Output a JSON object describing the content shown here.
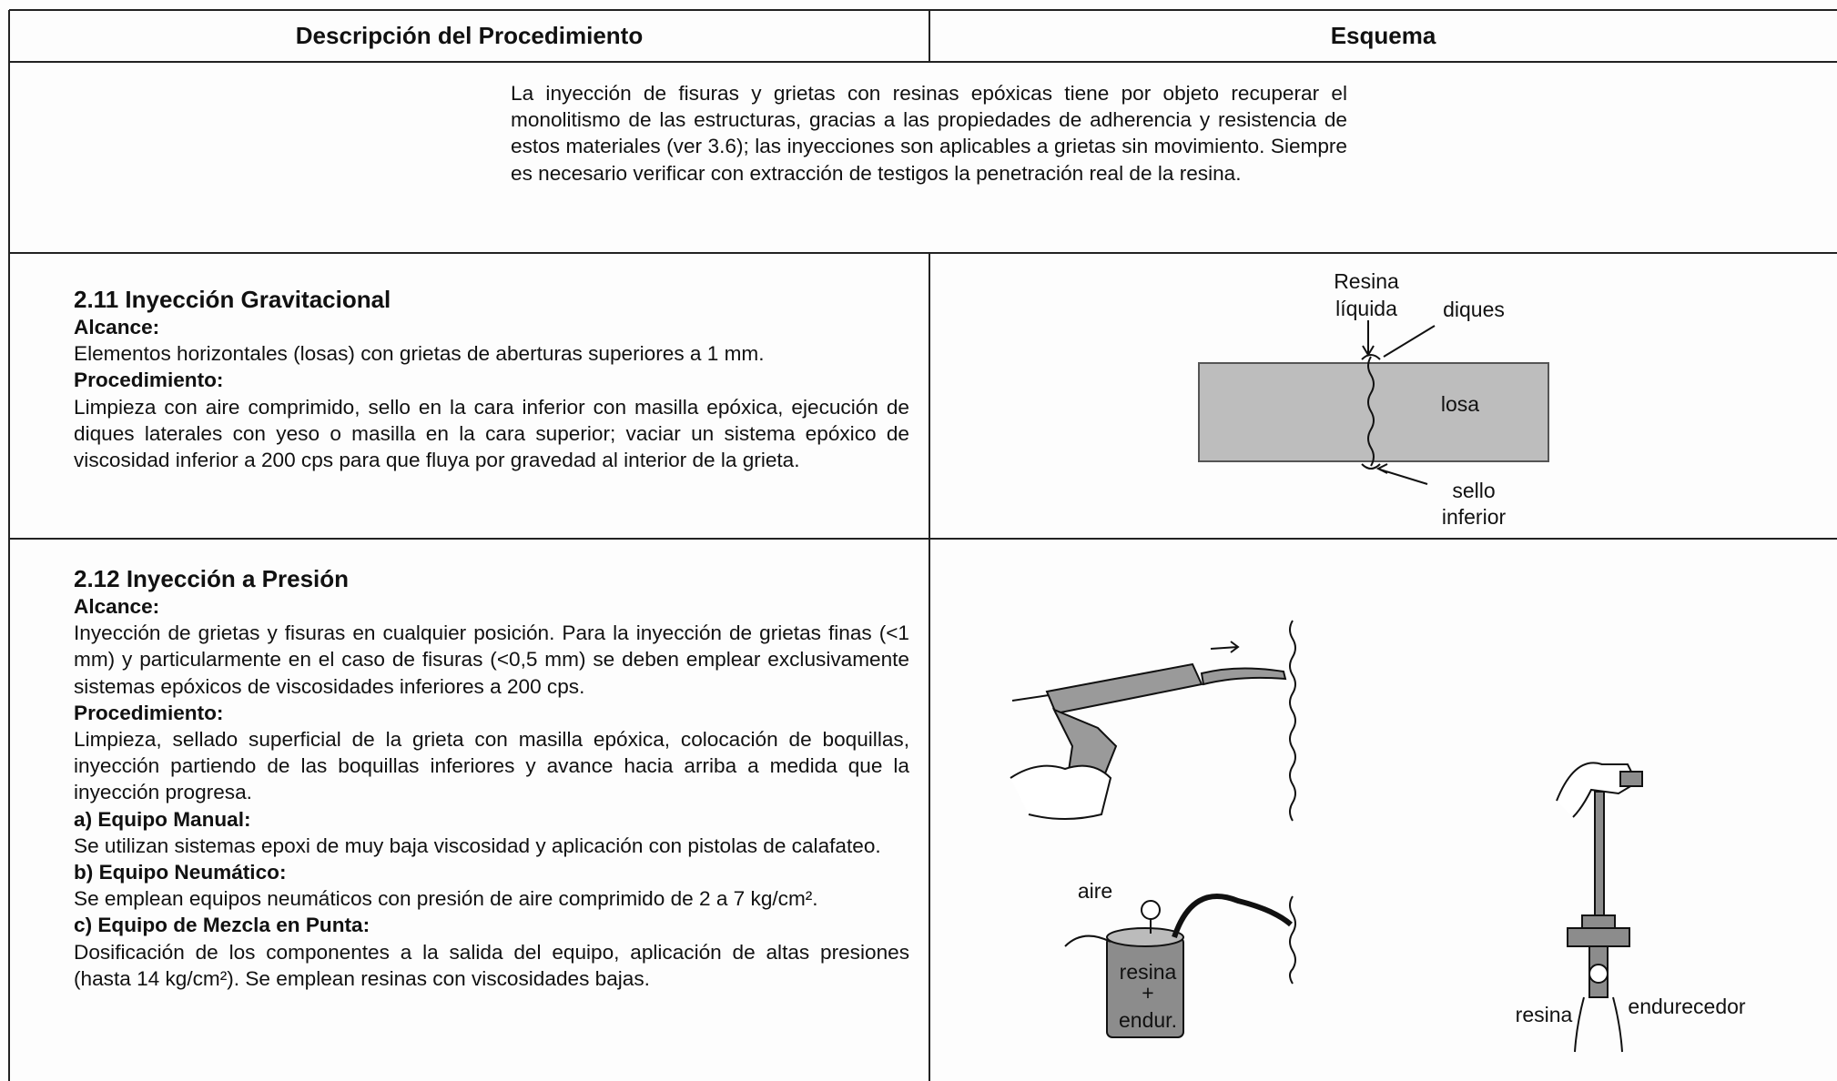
{
  "header": {
    "col1": "Descripción del Procedimiento",
    "col2": "Esquema"
  },
  "intro": "La inyección de fisuras y grietas con resinas epóxicas tiene por objeto recuperar el monolitismo de las estructuras, gracias a las propiedades de adherencia y resistencia de estos materiales (ver 3.6); las inyecciones son aplicables a grietas sin movimiento. Siempre es necesario verificar con extracción de testigos la penetración real de la resina.",
  "sections": [
    {
      "title": "2.11 Inyección Gravitacional",
      "blocks": [
        {
          "heading": "Alcance:",
          "text": "Elementos horizontales (losas) con grietas de aberturas superiores a 1 mm."
        },
        {
          "heading": "Procedimiento:",
          "text": "Limpieza con aire comprimido, sello en la cara inferior con masilla epóxica, ejecución de diques laterales con yeso o masilla en la cara superior; vaciar un sistema epóxico de viscosidad inferior a 200 cps para que fluya por gravedad al interior de la grieta."
        }
      ]
    },
    {
      "title": "2.12 Inyección a Presión",
      "blocks": [
        {
          "heading": "Alcance:",
          "text": "Inyección de grietas y fisuras en cualquier posición. Para la inyección de grietas finas (<1 mm) y particularmente en el caso de fisuras (<0,5 mm) se deben emplear exclusivamente sistemas epóxicos de viscosidades inferiores a 200 cps."
        },
        {
          "heading": "Procedimiento:",
          "text": "Limpieza, sellado superficial de la grieta con masilla epóxica, colocación de boquillas, inyección partiendo de las boquillas inferiores y avance hacia arriba a medida que la inyección progresa."
        },
        {
          "heading": "a) Equipo Manual:",
          "text": "Se utilizan sistemas epoxi de muy baja viscosidad y aplicación con pistolas de calafateo."
        },
        {
          "heading": "b) Equipo Neumático:",
          "text": "Se emplean equipos neumáticos con presión de aire comprimido de 2 a 7 kg/cm²."
        },
        {
          "heading": "c) Equipo de Mezcla en Punta:",
          "text": "Dosificación de los componentes a la salida del equipo, aplicación de altas presiones (hasta 14 kg/cm²). Se emplean resinas con viscosidades bajas."
        }
      ]
    }
  ],
  "diagram_gravity": {
    "resin": [
      "Resina",
      "líquida"
    ],
    "dikes": "diques",
    "slab": "losa",
    "seal": [
      "sello",
      "inferior"
    ]
  },
  "diagram_pressure": {
    "air": "aire",
    "can": [
      "resina",
      "+",
      "endur."
    ],
    "resin": "resina",
    "hardener": "endurecedor"
  }
}
